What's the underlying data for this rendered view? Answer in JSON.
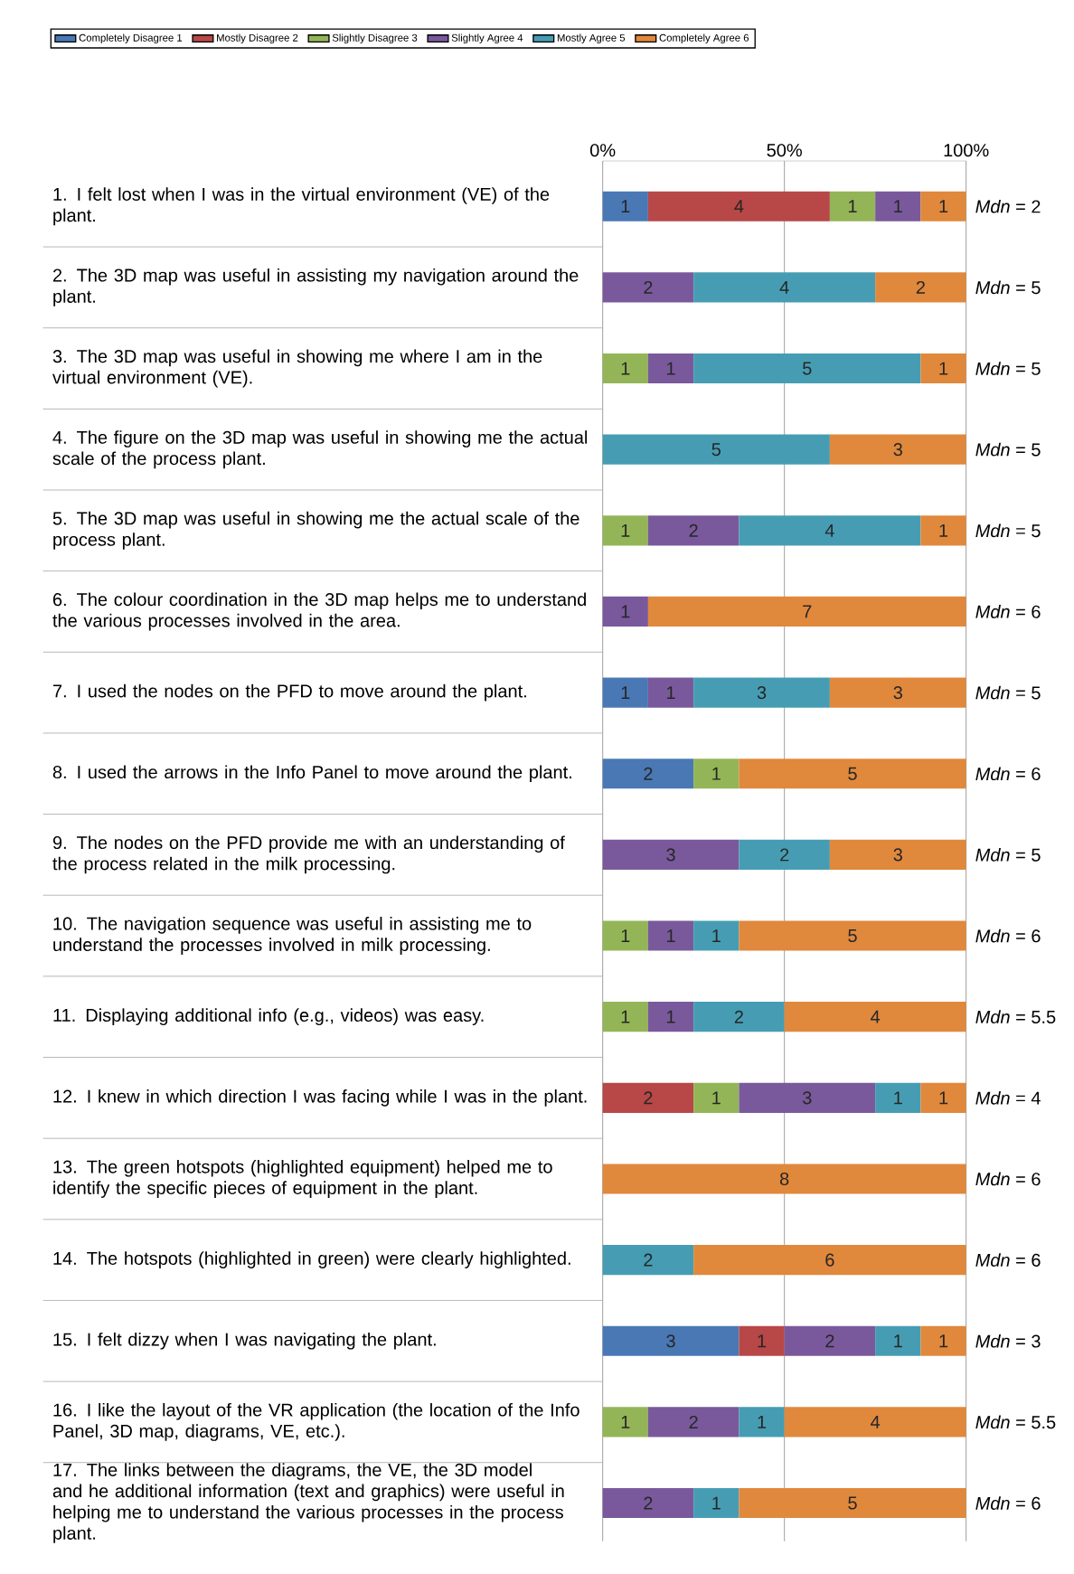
{
  "chart_data": {
    "type": "bar",
    "orientation": "horizontal",
    "stacked": true,
    "data_labels": true,
    "grid": true,
    "legend": "top left",
    "xlim": [
      0,
      8
    ],
    "x2lim": [
      0,
      100
    ],
    "x2ticks": [
      {
        "value": 0,
        "label": "0%"
      },
      {
        "value": 50,
        "label": "50%"
      },
      {
        "value": 100,
        "label": "100%"
      }
    ],
    "categories": [
      "1.  I felt lost when I was in the virtual environment (VE) of the plant.",
      "2.  The 3D map was useful in assisting my navigation around the plant.",
      "3.  The 3D map was useful in showing me where I am in the virtual environment (VE).",
      "4.  The figure on the 3D map was useful in showing me the actual scale of the process plant.",
      "5.  The 3D map was useful in showing me the actual scale of the process plant.",
      "6.  The colour coordination in the 3D map helps me to understand the various processes involved in the area.",
      "7.  I used the nodes on the PFD to move around the plant.",
      "8.  I used the arrows in the Info Panel to move around the plant.",
      "9.  The nodes on the PFD provide me with an understanding of the process related in the milk processing.",
      "10. The navigation sequence was useful in assisting me to understand the processes involved in milk processing.",
      "11. Displaying additional info (e.g., videos) was easy.",
      "12. I knew in which direction I was facing while I was in the plant.",
      "13. The green hotspots (highlighted equipment) helped me to identify the specific pieces of equipment in the plant.",
      "14. The hotspots (highlighted in green) were clearly highlighted.",
      "15. I felt dizzy when I was navigating the plant.",
      "16. I like the layout of the VR application (the location of the Info Panel, 3D map, diagrams, VE, etc.).",
      "17. The links between the diagrams, the VE, the 3D model and he additional information (text and graphics) were useful in helping me to understand the various processes in the process plant."
    ],
    "series": [
      {
        "name": "Completely Disagree 1",
        "color": "#4a78b4",
        "values": [
          1,
          null,
          null,
          null,
          null,
          null,
          1,
          2,
          null,
          null,
          null,
          null,
          null,
          null,
          3,
          null,
          null
        ]
      },
      {
        "name": "Mostly Disagree 2",
        "color": "#b84747",
        "values": [
          4,
          null,
          null,
          null,
          null,
          null,
          null,
          null,
          null,
          null,
          null,
          2,
          null,
          null,
          1,
          null,
          null
        ]
      },
      {
        "name": "Slightly Disagree 3",
        "color": "#93b557",
        "values": [
          1,
          null,
          1,
          null,
          1,
          null,
          null,
          1,
          null,
          1,
          1,
          1,
          null,
          null,
          null,
          1,
          null
        ]
      },
      {
        "name": "Slightly Agree 4",
        "color": "#79599b",
        "values": [
          1,
          2,
          1,
          null,
          2,
          1,
          1,
          null,
          3,
          1,
          1,
          3,
          null,
          null,
          2,
          2,
          2
        ]
      },
      {
        "name": "Mostly Agree 5",
        "color": "#469db3",
        "values": [
          null,
          4,
          5,
          5,
          4,
          null,
          3,
          null,
          2,
          1,
          2,
          1,
          null,
          2,
          1,
          1,
          1
        ]
      },
      {
        "name": "Completely Agree 6",
        "color": "#e0883c",
        "values": [
          1,
          2,
          1,
          3,
          1,
          7,
          3,
          5,
          3,
          5,
          4,
          1,
          8,
          6,
          1,
          4,
          5
        ]
      }
    ],
    "annotations": [
      "*Mdn* = 2",
      "*Mdn* = 5",
      "*Mdn* = 5",
      "*Mdn* = 5",
      "*Mdn* = 5",
      "*Mdn* = 6",
      "*Mdn* = 5",
      "*Mdn* = 6",
      "*Mdn* = 5",
      "*Mdn* = 6",
      "*Mdn* = 5.5",
      "*Mdn* = 4",
      "*Mdn* = 6",
      "*Mdn* = 6",
      "*Mdn* = 3",
      "*Mdn* = 5.5",
      "*Mdn* = 6"
    ]
  }
}
